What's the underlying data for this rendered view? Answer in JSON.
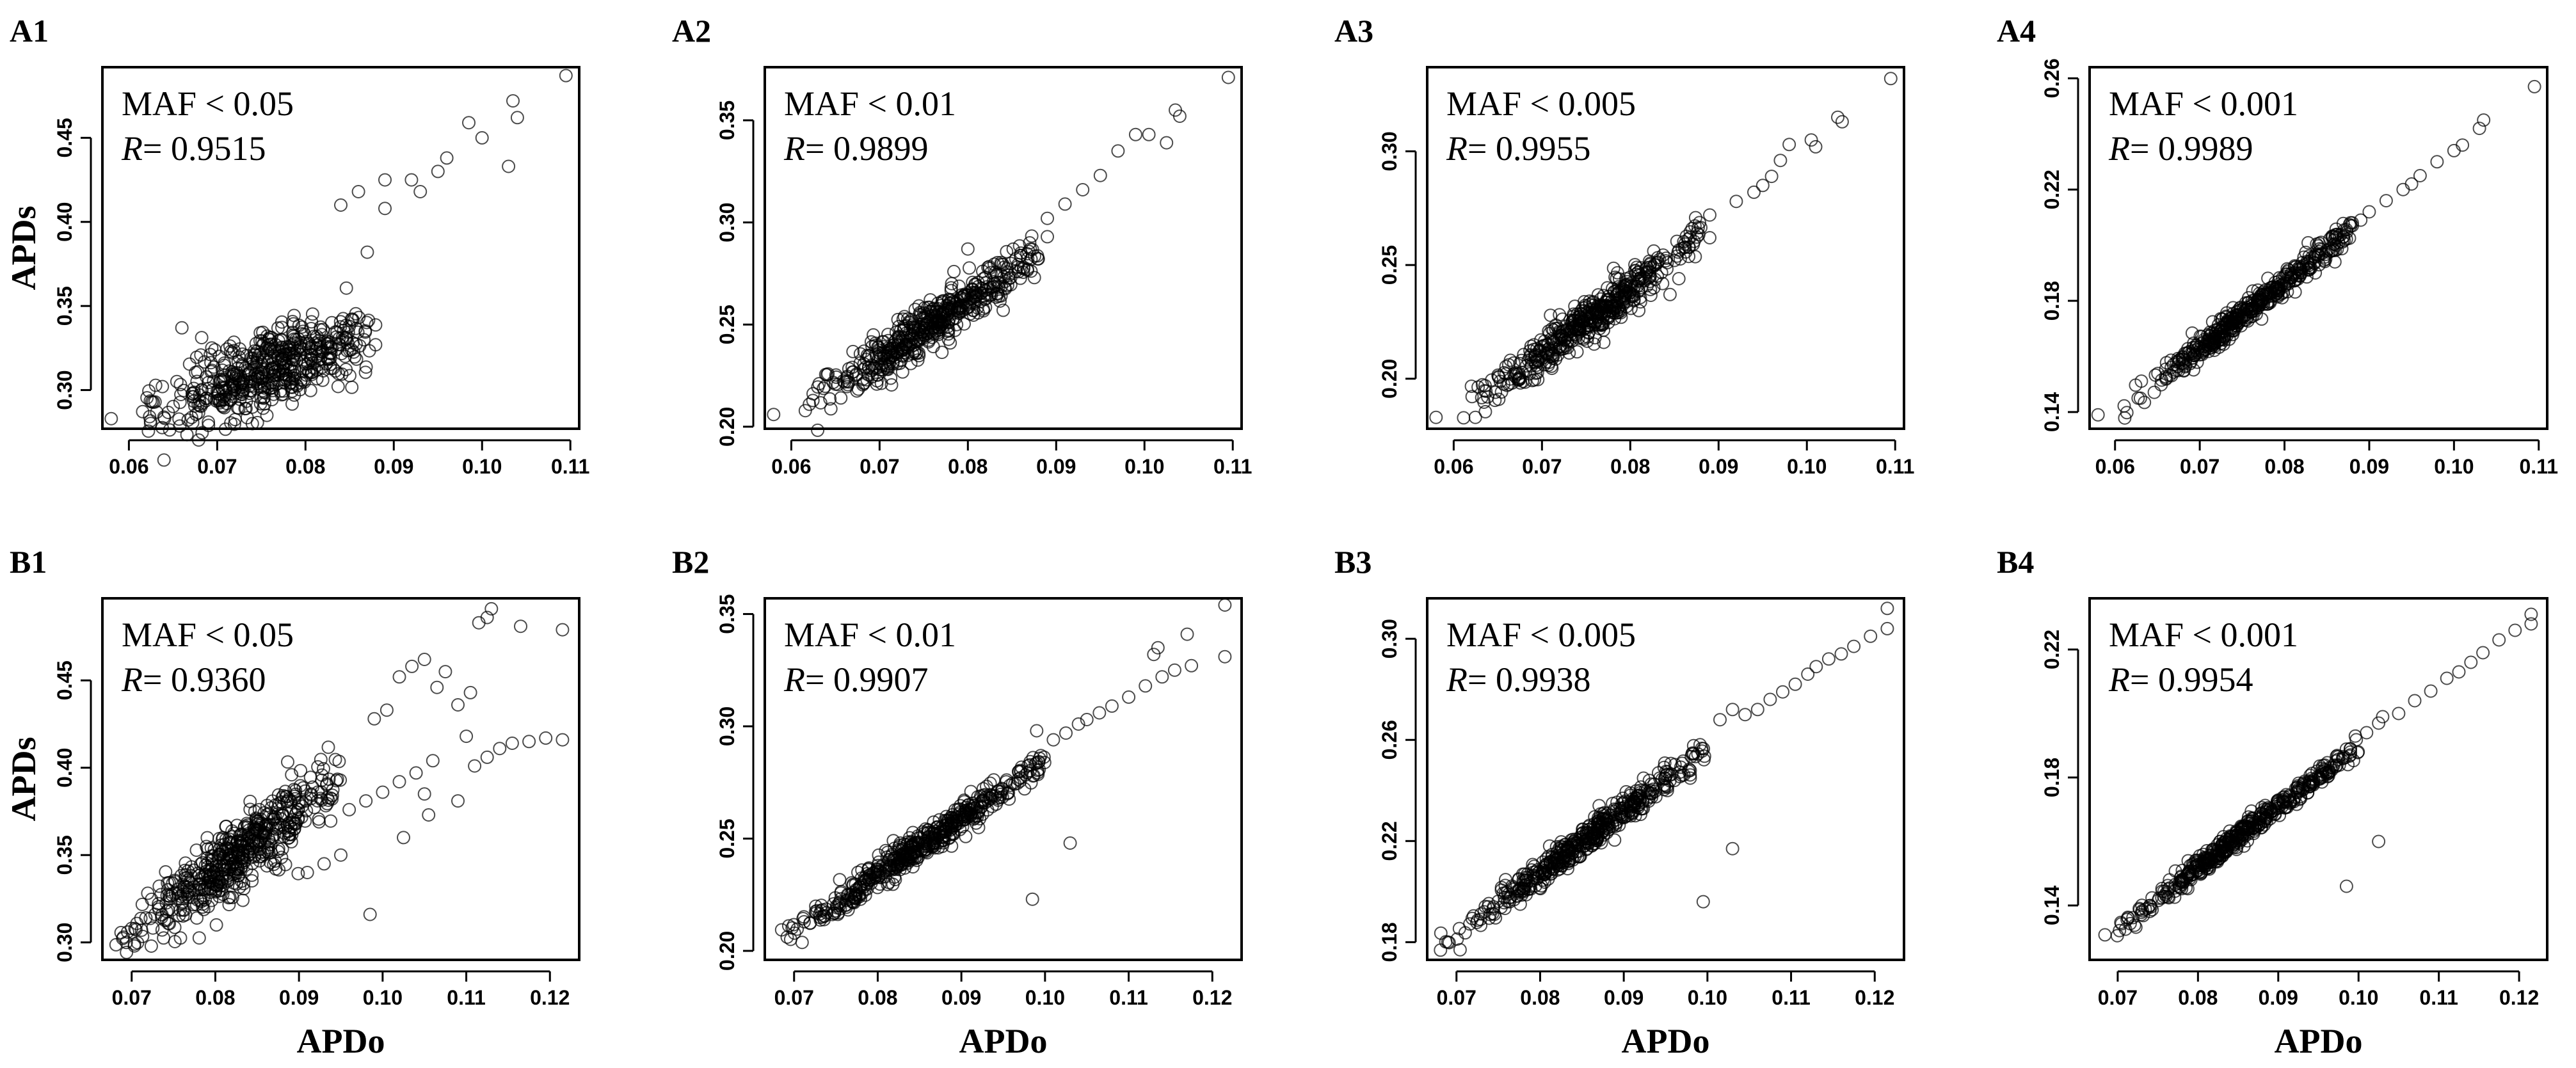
{
  "figure": {
    "x_axis_title": "APDo",
    "y_axis_title": "APDs"
  },
  "chart_data": [
    {
      "type": "scatter",
      "panel": "A1",
      "annotation": "MAF < 0.05",
      "r_label": "R",
      "r_value": "= 0.9515",
      "xlim": [
        0.057,
        0.111
      ],
      "ylim": [
        0.277,
        0.492
      ],
      "xticks": [
        0.06,
        0.07,
        0.08,
        0.09,
        0.1,
        0.11
      ],
      "xtick_labels": [
        "0.06",
        "0.07",
        "0.08",
        "0.09",
        "0.10",
        "0.11"
      ],
      "yticks": [
        0.3,
        0.35,
        0.4,
        0.45
      ],
      "ytick_labels": [
        "0.30",
        "0.35",
        "0.40",
        "0.45"
      ],
      "trend": {
        "x0": 0.061,
        "y0": 0.283,
        "slope": 1.94,
        "noise": 0.011
      },
      "core": {
        "count": 520,
        "x_range": [
          0.061,
          0.088
        ]
      },
      "points": [
        [
          0.058,
          0.283
        ],
        [
          0.1095,
          0.487
        ],
        [
          0.1035,
          0.472
        ],
        [
          0.104,
          0.462
        ],
        [
          0.0985,
          0.459
        ],
        [
          0.1,
          0.45
        ],
        [
          0.103,
          0.433
        ],
        [
          0.096,
          0.438
        ],
        [
          0.095,
          0.43
        ],
        [
          0.092,
          0.425
        ],
        [
          0.093,
          0.418
        ],
        [
          0.089,
          0.425
        ],
        [
          0.089,
          0.408
        ],
        [
          0.086,
          0.418
        ],
        [
          0.084,
          0.41
        ],
        [
          0.071,
          0.3
        ],
        [
          0.087,
          0.382
        ],
        [
          0.083,
          0.325
        ],
        [
          0.066,
          0.337
        ]
      ]
    },
    {
      "type": "scatter",
      "panel": "A2",
      "annotation": "MAF < 0.01",
      "r_label": "R",
      "r_value": "= 0.9899",
      "xlim": [
        0.057,
        0.111
      ],
      "ylim": [
        0.199,
        0.376
      ],
      "xticks": [
        0.06,
        0.07,
        0.08,
        0.09,
        0.1,
        0.11
      ],
      "xtick_labels": [
        "0.06",
        "0.07",
        "0.08",
        "0.09",
        "0.10",
        "0.11"
      ],
      "yticks": [
        0.2,
        0.25,
        0.3,
        0.35
      ],
      "ytick_labels": [
        "0.20",
        "0.25",
        "0.30",
        "0.35"
      ],
      "trend": {
        "x0": 0.061,
        "y0": 0.208,
        "slope": 2.85,
        "noise": 0.006
      },
      "core": {
        "count": 500,
        "x_range": [
          0.061,
          0.088
        ]
      },
      "points": [
        [
          0.058,
          0.206
        ],
        [
          0.1095,
          0.371
        ],
        [
          0.1035,
          0.355
        ],
        [
          0.104,
          0.352
        ],
        [
          0.099,
          0.343
        ],
        [
          0.1005,
          0.343
        ],
        [
          0.1025,
          0.339
        ],
        [
          0.097,
          0.335
        ],
        [
          0.095,
          0.323
        ],
        [
          0.093,
          0.316
        ],
        [
          0.091,
          0.309
        ],
        [
          0.089,
          0.302
        ],
        [
          0.089,
          0.293
        ],
        [
          0.087,
          0.29
        ],
        [
          0.086,
          0.285
        ],
        [
          0.084,
          0.257
        ],
        [
          0.08,
          0.287
        ],
        [
          0.078,
          0.241
        ],
        [
          0.072,
          0.237
        ]
      ]
    },
    {
      "type": "scatter",
      "panel": "A3",
      "annotation": "MAF < 0.005",
      "r_label": "R",
      "r_value": "= 0.9955",
      "xlim": [
        0.057,
        0.111
      ],
      "ylim": [
        0.178,
        0.337
      ],
      "xticks": [
        0.06,
        0.07,
        0.08,
        0.09,
        0.1,
        0.11
      ],
      "xtick_labels": [
        "0.06",
        "0.07",
        "0.08",
        "0.09",
        "0.10",
        "0.11"
      ],
      "yticks": [
        0.2,
        0.25,
        0.3
      ],
      "ytick_labels": [
        "0.20",
        "0.25",
        "0.30"
      ],
      "trend": {
        "x0": 0.061,
        "y0": 0.186,
        "slope": 2.82,
        "noise": 0.0045
      },
      "core": {
        "count": 480,
        "x_range": [
          0.061,
          0.088
        ]
      },
      "points": [
        [
          0.058,
          0.183
        ],
        [
          0.1095,
          0.332
        ],
        [
          0.1035,
          0.315
        ],
        [
          0.104,
          0.313
        ],
        [
          0.1005,
          0.305
        ],
        [
          0.101,
          0.302
        ],
        [
          0.098,
          0.303
        ],
        [
          0.097,
          0.296
        ],
        [
          0.096,
          0.289
        ],
        [
          0.095,
          0.285
        ],
        [
          0.094,
          0.282
        ],
        [
          0.092,
          0.278
        ],
        [
          0.089,
          0.272
        ],
        [
          0.089,
          0.262
        ],
        [
          0.087,
          0.266
        ],
        [
          0.0855,
          0.244
        ],
        [
          0.0845,
          0.237
        ],
        [
          0.077,
          0.216
        ],
        [
          0.085,
          0.252
        ]
      ]
    },
    {
      "type": "scatter",
      "panel": "A4",
      "annotation": "MAF < 0.001",
      "r_label": "R",
      "r_value": "= 0.9989",
      "xlim": [
        0.057,
        0.111
      ],
      "ylim": [
        0.134,
        0.264
      ],
      "xticks": [
        0.06,
        0.07,
        0.08,
        0.09,
        0.1,
        0.11
      ],
      "xtick_labels": [
        "0.06",
        "0.07",
        "0.08",
        "0.09",
        "0.10",
        "0.11"
      ],
      "yticks": [
        0.14,
        0.18,
        0.22,
        0.26
      ],
      "ytick_labels": [
        "0.14",
        "0.18",
        "0.22",
        "0.26"
      ],
      "trend": {
        "x0": 0.061,
        "y0": 0.141,
        "slope": 2.4,
        "noise": 0.0022
      },
      "core": {
        "count": 460,
        "x_range": [
          0.061,
          0.088
        ]
      },
      "points": [
        [
          0.058,
          0.139
        ],
        [
          0.1095,
          0.257
        ],
        [
          0.1035,
          0.245
        ],
        [
          0.103,
          0.242
        ],
        [
          0.101,
          0.236
        ],
        [
          0.1,
          0.234
        ],
        [
          0.098,
          0.23
        ],
        [
          0.096,
          0.225
        ],
        [
          0.095,
          0.222
        ],
        [
          0.094,
          0.22
        ],
        [
          0.092,
          0.216
        ],
        [
          0.09,
          0.212
        ],
        [
          0.089,
          0.209
        ],
        [
          0.088,
          0.207
        ],
        [
          0.086,
          0.203
        ],
        [
          0.085,
          0.198
        ],
        [
          0.082,
          0.19
        ]
      ]
    },
    {
      "type": "scatter",
      "panel": "B1",
      "annotation": "MAF < 0.05",
      "r_label": "R",
      "r_value": "= 0.9360",
      "xlim": [
        0.0665,
        0.1235
      ],
      "ylim": [
        0.29,
        0.497
      ],
      "xticks": [
        0.07,
        0.08,
        0.09,
        0.1,
        0.11,
        0.12
      ],
      "xtick_labels": [
        "0.07",
        "0.08",
        "0.09",
        "0.10",
        "0.11",
        "0.12"
      ],
      "yticks": [
        0.3,
        0.35,
        0.4,
        0.45
      ],
      "ytick_labels": [
        "0.30",
        "0.35",
        "0.40",
        "0.45"
      ],
      "trend": {
        "x0": 0.068,
        "y0": 0.298,
        "slope": 3.6,
        "noise": 0.01
      },
      "core": {
        "count": 520,
        "x_range": [
          0.068,
          0.095
        ]
      },
      "points": [
        [
          0.113,
          0.491
        ],
        [
          0.1125,
          0.486
        ],
        [
          0.1115,
          0.483
        ],
        [
          0.1165,
          0.481
        ],
        [
          0.1215,
          0.479
        ],
        [
          0.105,
          0.462
        ],
        [
          0.1035,
          0.458
        ],
        [
          0.102,
          0.452
        ],
        [
          0.1075,
          0.455
        ],
        [
          0.1065,
          0.446
        ],
        [
          0.1105,
          0.443
        ],
        [
          0.109,
          0.436
        ],
        [
          0.1005,
          0.433
        ],
        [
          0.099,
          0.428
        ],
        [
          0.11,
          0.418
        ],
        [
          0.1215,
          0.416
        ],
        [
          0.1195,
          0.417
        ],
        [
          0.1175,
          0.415
        ],
        [
          0.1155,
          0.414
        ],
        [
          0.114,
          0.411
        ],
        [
          0.1125,
          0.406
        ],
        [
          0.111,
          0.401
        ],
        [
          0.106,
          0.404
        ],
        [
          0.104,
          0.397
        ],
        [
          0.102,
          0.392
        ],
        [
          0.1,
          0.386
        ],
        [
          0.098,
          0.381
        ],
        [
          0.096,
          0.376
        ],
        [
          0.109,
          0.381
        ],
        [
          0.105,
          0.385
        ],
        [
          0.0985,
          0.316
        ],
        [
          0.095,
          0.35
        ],
        [
          0.093,
          0.345
        ],
        [
          0.091,
          0.34
        ],
        [
          0.1025,
          0.36
        ],
        [
          0.1055,
          0.373
        ],
        [
          0.069,
          0.303
        ],
        [
          0.07,
          0.308
        ]
      ]
    },
    {
      "type": "scatter",
      "panel": "B2",
      "annotation": "MAF < 0.01",
      "r_label": "R",
      "r_value": "= 0.9907",
      "xlim": [
        0.0665,
        0.1235
      ],
      "ylim": [
        0.196,
        0.357
      ],
      "xticks": [
        0.07,
        0.08,
        0.09,
        0.1,
        0.11,
        0.12
      ],
      "xtick_labels": [
        "0.07",
        "0.08",
        "0.09",
        "0.10",
        "0.11",
        "0.12"
      ],
      "yticks": [
        0.2,
        0.25,
        0.3,
        0.35
      ],
      "ytick_labels": [
        "0.20",
        "0.25",
        "0.30",
        "0.35"
      ],
      "trend": {
        "x0": 0.068,
        "y0": 0.203,
        "slope": 2.56,
        "noise": 0.0035
      },
      "core": {
        "count": 500,
        "x_range": [
          0.068,
          0.1
        ]
      },
      "points": [
        [
          0.1215,
          0.354
        ],
        [
          0.1215,
          0.331
        ],
        [
          0.117,
          0.341
        ],
        [
          0.1175,
          0.327
        ],
        [
          0.1135,
          0.335
        ],
        [
          0.113,
          0.332
        ],
        [
          0.1155,
          0.325
        ],
        [
          0.114,
          0.322
        ],
        [
          0.112,
          0.318
        ],
        [
          0.11,
          0.313
        ],
        [
          0.108,
          0.309
        ],
        [
          0.1065,
          0.306
        ],
        [
          0.105,
          0.303
        ],
        [
          0.104,
          0.301
        ],
        [
          0.1025,
          0.297
        ],
        [
          0.101,
          0.294
        ],
        [
          0.0985,
          0.223
        ],
        [
          0.103,
          0.248
        ],
        [
          0.099,
          0.298
        ],
        [
          0.0995,
          0.287
        ]
      ]
    },
    {
      "type": "scatter",
      "panel": "B3",
      "annotation": "MAF < 0.005",
      "r_label": "R",
      "r_value": "= 0.9938",
      "xlim": [
        0.0665,
        0.1235
      ],
      "ylim": [
        0.173,
        0.316
      ],
      "xticks": [
        0.07,
        0.08,
        0.09,
        0.1,
        0.11,
        0.12
      ],
      "xtick_labels": [
        "0.07",
        "0.08",
        "0.09",
        "0.10",
        "0.11",
        "0.12"
      ],
      "yticks": [
        0.18,
        0.22,
        0.26,
        0.3
      ],
      "ytick_labels": [
        "0.18",
        "0.22",
        "0.26",
        "0.30"
      ],
      "trend": {
        "x0": 0.068,
        "y0": 0.178,
        "slope": 2.45,
        "noise": 0.0028
      },
      "core": {
        "count": 480,
        "x_range": [
          0.068,
          0.1
        ]
      },
      "points": [
        [
          0.1215,
          0.312
        ],
        [
          0.1215,
          0.304
        ],
        [
          0.1195,
          0.301
        ],
        [
          0.1175,
          0.297
        ],
        [
          0.116,
          0.294
        ],
        [
          0.1145,
          0.292
        ],
        [
          0.113,
          0.289
        ],
        [
          0.112,
          0.286
        ],
        [
          0.1105,
          0.282
        ],
        [
          0.109,
          0.279
        ],
        [
          0.1075,
          0.276
        ],
        [
          0.106,
          0.272
        ],
        [
          0.1045,
          0.27
        ],
        [
          0.103,
          0.272
        ],
        [
          0.1015,
          0.268
        ],
        [
          0.0995,
          0.196
        ],
        [
          0.103,
          0.217
        ]
      ]
    },
    {
      "type": "scatter",
      "panel": "B4",
      "annotation": "MAF < 0.001",
      "r_label": "R",
      "r_value": "= 0.9954",
      "xlim": [
        0.0665,
        0.1235
      ],
      "ylim": [
        0.123,
        0.236
      ],
      "xticks": [
        0.07,
        0.08,
        0.09,
        0.1,
        0.11,
        0.12
      ],
      "xtick_labels": [
        "0.07",
        "0.08",
        "0.09",
        "0.10",
        "0.11",
        "0.12"
      ],
      "yticks": [
        0.14,
        0.18,
        0.22
      ],
      "ytick_labels": [
        "0.14",
        "0.18",
        "0.22"
      ],
      "trend": {
        "x0": 0.068,
        "y0": 0.129,
        "slope": 1.9,
        "noise": 0.0016
      },
      "core": {
        "count": 460,
        "x_range": [
          0.068,
          0.1
        ]
      },
      "points": [
        [
          0.1215,
          0.231
        ],
        [
          0.1215,
          0.228
        ],
        [
          0.1195,
          0.226
        ],
        [
          0.1175,
          0.223
        ],
        [
          0.1155,
          0.219
        ],
        [
          0.114,
          0.216
        ],
        [
          0.1125,
          0.213
        ],
        [
          0.111,
          0.211
        ],
        [
          0.109,
          0.207
        ],
        [
          0.107,
          0.204
        ],
        [
          0.105,
          0.2
        ],
        [
          0.103,
          0.199
        ],
        [
          0.1025,
          0.197
        ],
        [
          0.101,
          0.194
        ],
        [
          0.0985,
          0.146
        ],
        [
          0.1025,
          0.16
        ]
      ]
    }
  ]
}
